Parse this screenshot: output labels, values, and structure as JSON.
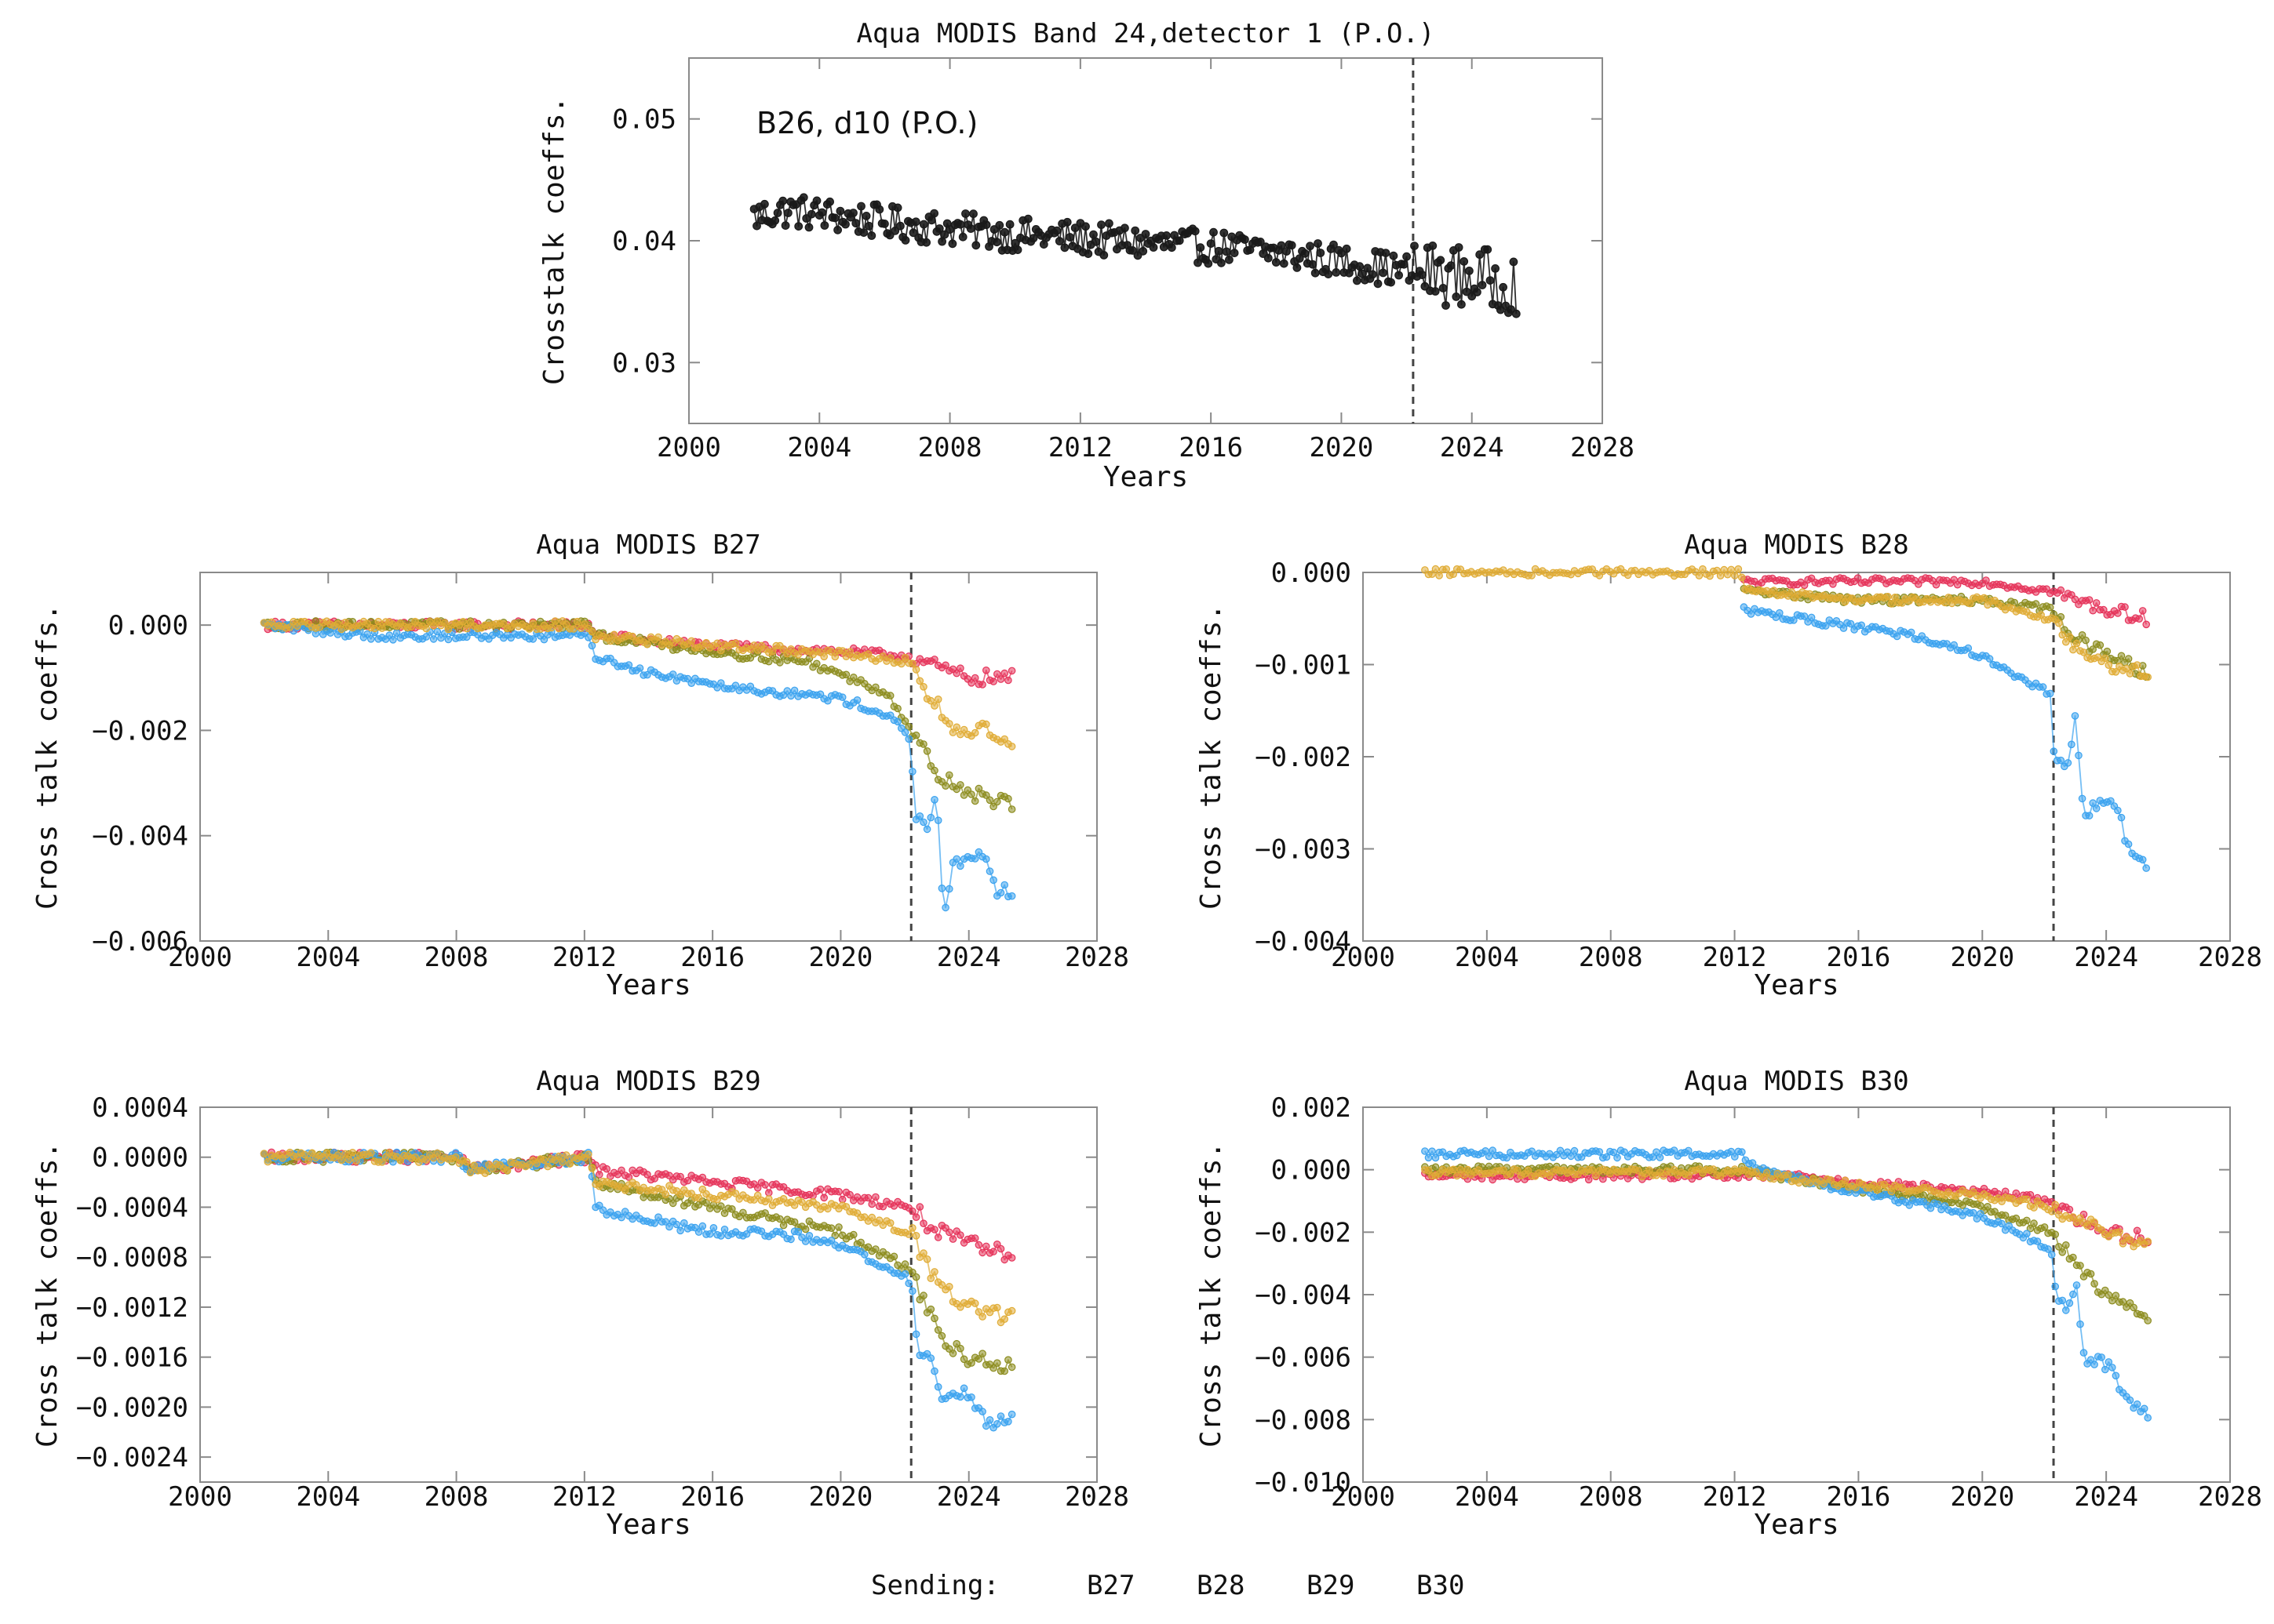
{
  "figure": {
    "legend": {
      "title": "Sending:",
      "items": [
        {
          "label": "B27",
          "color": "#e5335a"
        },
        {
          "label": "B28",
          "color": "#8c8c1e"
        },
        {
          "label": "B29",
          "color": "#3aa2ef"
        },
        {
          "label": "B30",
          "color": "#e0ac35"
        }
      ]
    }
  },
  "chart_data": [
    {
      "id": "top",
      "type": "line",
      "title": "Aqua MODIS Band 24,detector 1 (P.O.)",
      "annotation": "B26, d10 (P.O.)",
      "xlabel": "Years",
      "ylabel": "Crosstalk coeffs.",
      "xlim": [
        2000,
        2028
      ],
      "ylim": [
        0.025,
        0.055
      ],
      "xticks": [
        2000,
        2004,
        2008,
        2012,
        2016,
        2020,
        2024,
        2028
      ],
      "yticks": [
        0.03,
        0.04,
        0.05
      ],
      "ytick_labels": [
        "0.03",
        "0.04",
        "0.05"
      ],
      "vline_x": 2022.2,
      "noise": 0.0014,
      "series": [
        {
          "name": "B26, d10",
          "color": "#1a1a1a",
          "anchors": [
            [
              2002.0,
              0.042
            ],
            [
              2003.0,
              0.0425
            ],
            [
              2004.0,
              0.0422
            ],
            [
              2006.0,
              0.0415
            ],
            [
              2008.0,
              0.041
            ],
            [
              2010.0,
              0.0405
            ],
            [
              2012.0,
              0.0402
            ],
            [
              2014.0,
              0.0398
            ],
            [
              2016.0,
              0.0395
            ],
            [
              2018.0,
              0.039
            ],
            [
              2020.0,
              0.0383
            ],
            [
              2022.0,
              0.0375
            ],
            [
              2024.0,
              0.037
            ],
            [
              2025.4,
              0.0365
            ]
          ]
        }
      ]
    },
    {
      "id": "b27",
      "type": "line",
      "title": "Aqua MODIS B27",
      "xlabel": "Years",
      "ylabel": "Cross talk coeffs.",
      "xlim": [
        2000,
        2028
      ],
      "ylim": [
        -0.006,
        0.001
      ],
      "xticks": [
        2000,
        2004,
        2008,
        2012,
        2016,
        2020,
        2024,
        2028
      ],
      "yticks": [
        -0.006,
        -0.004,
        -0.002,
        0.0
      ],
      "ytick_labels": [
        "−0.006",
        "−0.004",
        "−0.002",
        "0.000"
      ],
      "vline_x": 2022.2,
      "noise": 8e-05,
      "series": [
        {
          "name": "B27",
          "color": "#e5335a",
          "anchors": [
            [
              2002.0,
              0.0
            ],
            [
              2012.2,
              0.0
            ],
            [
              2012.3,
              -0.0002
            ],
            [
              2016.0,
              -0.0004
            ],
            [
              2020.0,
              -0.0005
            ],
            [
              2022.2,
              -0.0006
            ],
            [
              2023.0,
              -0.0008
            ],
            [
              2024.0,
              -0.001
            ],
            [
              2025.4,
              -0.001
            ]
          ]
        },
        {
          "name": "B28",
          "color": "#8c8c1e",
          "anchors": [
            [
              2002.0,
              0.0
            ],
            [
              2012.2,
              0.0
            ],
            [
              2012.3,
              -0.0002
            ],
            [
              2016.0,
              -0.0005
            ],
            [
              2019.0,
              -0.0007
            ],
            [
              2021.5,
              -0.0013
            ],
            [
              2022.2,
              -0.002
            ],
            [
              2023.0,
              -0.0028
            ],
            [
              2024.0,
              -0.0032
            ],
            [
              2025.4,
              -0.0034
            ]
          ]
        },
        {
          "name": "B29",
          "color": "#3aa2ef",
          "anchors": [
            [
              2002.0,
              0.0
            ],
            [
              2005.5,
              -0.0002
            ],
            [
              2012.2,
              -0.0002
            ],
            [
              2012.3,
              -0.0006
            ],
            [
              2014.0,
              -0.0009
            ],
            [
              2017.0,
              -0.0012
            ],
            [
              2020.0,
              -0.0014
            ],
            [
              2021.5,
              -0.0017
            ],
            [
              2022.2,
              -0.0022
            ],
            [
              2022.3,
              -0.0036
            ],
            [
              2022.8,
              -0.0038
            ],
            [
              2023.0,
              -0.0032
            ],
            [
              2023.2,
              -0.0055
            ],
            [
              2023.5,
              -0.0046
            ],
            [
              2024.2,
              -0.0045
            ],
            [
              2024.5,
              -0.0043
            ],
            [
              2024.8,
              -0.005
            ],
            [
              2025.4,
              -0.0051
            ]
          ]
        },
        {
          "name": "B30",
          "color": "#e0ac35",
          "anchors": [
            [
              2002.0,
              0.0
            ],
            [
              2012.2,
              0.0
            ],
            [
              2012.3,
              -0.0002
            ],
            [
              2016.0,
              -0.0004
            ],
            [
              2019.0,
              -0.0005
            ],
            [
              2022.2,
              -0.0007
            ],
            [
              2022.6,
              -0.0013
            ],
            [
              2023.0,
              -0.0015
            ],
            [
              2023.5,
              -0.002
            ],
            [
              2024.5,
              -0.002
            ],
            [
              2025.0,
              -0.0023
            ],
            [
              2025.4,
              -0.0023
            ]
          ]
        }
      ]
    },
    {
      "id": "b28",
      "type": "line",
      "title": "Aqua MODIS B28",
      "xlabel": "Years",
      "ylabel": "Cross talk coeffs.",
      "xlim": [
        2000,
        2028
      ],
      "ylim": [
        -0.004,
        0.0
      ],
      "xticks": [
        2000,
        2004,
        2008,
        2012,
        2016,
        2020,
        2024,
        2028
      ],
      "yticks": [
        -0.004,
        -0.003,
        -0.002,
        -0.001,
        0.0
      ],
      "ytick_labels": [
        "−0.004",
        "−0.003",
        "−0.002",
        "−0.001",
        "0.000"
      ],
      "vline_x": 2022.3,
      "noise": 4e-05,
      "series": [
        {
          "name": "B27",
          "color": "#e5335a",
          "anchors": [
            [
              2012.3,
              -0.0001
            ],
            [
              2016.0,
              -0.0001
            ],
            [
              2020.0,
              -0.0001
            ],
            [
              2022.2,
              -0.0002
            ],
            [
              2023.0,
              -0.0003
            ],
            [
              2024.0,
              -0.0004
            ],
            [
              2025.4,
              -0.0005
            ]
          ]
        },
        {
          "name": "B28",
          "color": "#8c8c1e",
          "anchors": [
            [
              2012.3,
              -0.0002
            ],
            [
              2016.0,
              -0.0003
            ],
            [
              2020.0,
              -0.0003
            ],
            [
              2022.2,
              -0.0004
            ],
            [
              2023.0,
              -0.0007
            ],
            [
              2024.0,
              -0.0009
            ],
            [
              2025.4,
              -0.0011
            ]
          ]
        },
        {
          "name": "B29",
          "color": "#3aa2ef",
          "anchors": [
            [
              2012.3,
              -0.0004
            ],
            [
              2014.0,
              -0.0005
            ],
            [
              2016.0,
              -0.0006
            ],
            [
              2018.0,
              -0.0007
            ],
            [
              2020.0,
              -0.0009
            ],
            [
              2021.5,
              -0.0012
            ],
            [
              2022.2,
              -0.0013
            ],
            [
              2022.3,
              -0.0019
            ],
            [
              2022.7,
              -0.0022
            ],
            [
              2023.0,
              -0.0016
            ],
            [
              2023.3,
              -0.0027
            ],
            [
              2023.6,
              -0.0025
            ],
            [
              2024.3,
              -0.0025
            ],
            [
              2024.8,
              -0.0031
            ],
            [
              2025.4,
              -0.0032
            ]
          ]
        },
        {
          "name": "B30",
          "color": "#e0ac35",
          "anchors": [
            [
              2002.0,
              0.0
            ],
            [
              2012.2,
              0.0
            ],
            [
              2012.3,
              -0.0002
            ],
            [
              2016.0,
              -0.0003
            ],
            [
              2020.0,
              -0.0003
            ],
            [
              2022.2,
              -0.0005
            ],
            [
              2023.0,
              -0.0008
            ],
            [
              2024.0,
              -0.001
            ],
            [
              2025.4,
              -0.0011
            ]
          ]
        }
      ]
    },
    {
      "id": "b29",
      "type": "line",
      "title": "Aqua MODIS B29",
      "xlabel": "Years",
      "ylabel": "Cross talk coeffs.",
      "xlim": [
        2000,
        2028
      ],
      "ylim": [
        -0.0026,
        0.0004
      ],
      "xticks": [
        2000,
        2004,
        2008,
        2012,
        2016,
        2020,
        2024,
        2028
      ],
      "yticks": [
        -0.0024,
        -0.002,
        -0.0016,
        -0.0012,
        -0.0008,
        -0.0004,
        0.0,
        0.0004
      ],
      "ytick_labels": [
        "−0.0024",
        "−0.0020",
        "−0.0016",
        "−0.0012",
        "−0.0008",
        "−0.0004",
        "0.0000",
        "0.0004"
      ],
      "vline_x": 2022.2,
      "noise": 4e-05,
      "series": [
        {
          "name": "B27",
          "color": "#e5335a",
          "anchors": [
            [
              2002.0,
              0.0
            ],
            [
              2008.0,
              0.0
            ],
            [
              2008.5,
              -0.0001
            ],
            [
              2012.2,
              0.0
            ],
            [
              2012.3,
              -0.0001
            ],
            [
              2016.0,
              -0.0002
            ],
            [
              2020.0,
              -0.0003
            ],
            [
              2022.2,
              -0.0004
            ],
            [
              2023.0,
              -0.0006
            ],
            [
              2024.0,
              -0.0007
            ],
            [
              2025.4,
              -0.0008
            ]
          ]
        },
        {
          "name": "B28",
          "color": "#8c8c1e",
          "anchors": [
            [
              2002.0,
              0.0
            ],
            [
              2008.0,
              0.0
            ],
            [
              2008.5,
              -0.0001
            ],
            [
              2012.2,
              0.0
            ],
            [
              2012.3,
              -0.0002
            ],
            [
              2016.0,
              -0.0004
            ],
            [
              2020.0,
              -0.0006
            ],
            [
              2022.2,
              -0.0009
            ],
            [
              2023.0,
              -0.0014
            ],
            [
              2024.0,
              -0.0016
            ],
            [
              2025.4,
              -0.0017
            ]
          ]
        },
        {
          "name": "B29",
          "color": "#3aa2ef",
          "anchors": [
            [
              2002.0,
              0.0
            ],
            [
              2008.0,
              0.0
            ],
            [
              2008.5,
              -0.0001
            ],
            [
              2012.2,
              0.0
            ],
            [
              2012.3,
              -0.0004
            ],
            [
              2014.0,
              -0.0005
            ],
            [
              2016.0,
              -0.0006
            ],
            [
              2018.0,
              -0.0006
            ],
            [
              2020.0,
              -0.0007
            ],
            [
              2022.2,
              -0.001
            ],
            [
              2022.4,
              -0.0015
            ],
            [
              2022.8,
              -0.0016
            ],
            [
              2023.2,
              -0.0019
            ],
            [
              2024.0,
              -0.0019
            ],
            [
              2024.6,
              -0.0021
            ],
            [
              2025.4,
              -0.0021
            ]
          ]
        },
        {
          "name": "B30",
          "color": "#e0ac35",
          "anchors": [
            [
              2002.0,
              0.0
            ],
            [
              2008.0,
              0.0
            ],
            [
              2008.5,
              -0.0001
            ],
            [
              2012.2,
              0.0
            ],
            [
              2012.3,
              -0.0002
            ],
            [
              2016.0,
              -0.0003
            ],
            [
              2020.0,
              -0.0004
            ],
            [
              2022.2,
              -0.0006
            ],
            [
              2023.0,
              -0.001
            ],
            [
              2024.0,
              -0.0012
            ],
            [
              2025.4,
              -0.0013
            ]
          ]
        }
      ]
    },
    {
      "id": "b30",
      "type": "line",
      "title": "Aqua MODIS B30",
      "xlabel": "Years",
      "ylabel": "Cross talk coeffs.",
      "xlim": [
        2000,
        2028
      ],
      "ylim": [
        -0.01,
        0.002
      ],
      "xticks": [
        2000,
        2004,
        2008,
        2012,
        2016,
        2020,
        2024,
        2028
      ],
      "yticks": [
        -0.01,
        -0.008,
        -0.006,
        -0.004,
        -0.002,
        0.0,
        0.002
      ],
      "ytick_labels": [
        "−0.010",
        "−0.008",
        "−0.006",
        "−0.004",
        "−0.002",
        "0.000",
        "0.002"
      ],
      "vline_x": 2022.3,
      "noise": 0.00012,
      "series": [
        {
          "name": "B27",
          "color": "#e5335a",
          "anchors": [
            [
              2002.0,
              -0.0002
            ],
            [
              2012.2,
              -0.0002
            ],
            [
              2014.0,
              -0.0002
            ],
            [
              2016.0,
              -0.0004
            ],
            [
              2020.0,
              -0.0007
            ],
            [
              2022.2,
              -0.001
            ],
            [
              2023.0,
              -0.0015
            ],
            [
              2024.0,
              -0.002
            ],
            [
              2025.4,
              -0.0022
            ]
          ]
        },
        {
          "name": "B28",
          "color": "#8c8c1e",
          "anchors": [
            [
              2002.0,
              0.0
            ],
            [
              2012.2,
              0.0
            ],
            [
              2014.0,
              -0.0003
            ],
            [
              2016.0,
              -0.0006
            ],
            [
              2020.0,
              -0.0012
            ],
            [
              2022.2,
              -0.002
            ],
            [
              2023.0,
              -0.003
            ],
            [
              2024.0,
              -0.004
            ],
            [
              2025.4,
              -0.0048
            ]
          ]
        },
        {
          "name": "B29",
          "color": "#3aa2ef",
          "anchors": [
            [
              2002.0,
              0.0005
            ],
            [
              2012.2,
              0.0005
            ],
            [
              2013.0,
              -0.0001
            ],
            [
              2016.0,
              -0.0007
            ],
            [
              2020.0,
              -0.0015
            ],
            [
              2022.2,
              -0.0025
            ],
            [
              2022.4,
              -0.004
            ],
            [
              2022.8,
              -0.0045
            ],
            [
              2023.0,
              -0.0035
            ],
            [
              2023.3,
              -0.006
            ],
            [
              2024.0,
              -0.0062
            ],
            [
              2024.8,
              -0.0075
            ],
            [
              2025.4,
              -0.008
            ]
          ]
        },
        {
          "name": "B30",
          "color": "#e0ac35",
          "anchors": [
            [
              2002.0,
              -0.0001
            ],
            [
              2012.2,
              -0.0001
            ],
            [
              2014.0,
              -0.0003
            ],
            [
              2016.0,
              -0.0005
            ],
            [
              2020.0,
              -0.0008
            ],
            [
              2022.2,
              -0.0012
            ],
            [
              2023.0,
              -0.0016
            ],
            [
              2024.0,
              -0.002
            ],
            [
              2025.4,
              -0.0024
            ]
          ]
        }
      ]
    }
  ]
}
